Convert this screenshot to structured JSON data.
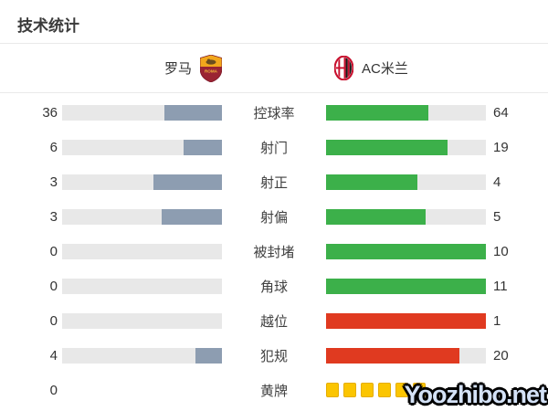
{
  "page": {
    "title": "技术统计",
    "watermark": "Yoozhibo.net"
  },
  "header": {
    "home_team": "罗马",
    "away_team": "AC米兰",
    "home_badge": "roma-crest-icon",
    "away_badge": "ac-milan-crest-icon"
  },
  "colors": {
    "home_fill": "#8d9db1",
    "away_green": "#3cb04a",
    "away_red": "#e03a20",
    "track": "#e8e8e8",
    "yellow_card": "#fbc501",
    "yellow_card_border": "#e5ad00"
  },
  "chart_data": {
    "type": "bar",
    "title": "技术统计",
    "home_team": "罗马",
    "away_team": "AC米兰",
    "normalization": "fill width = value / (home + away)",
    "legend_position": "none",
    "grid": false,
    "rows": [
      {
        "label": "控球率",
        "home": 36,
        "away": 64,
        "away_color": "green"
      },
      {
        "label": "射门",
        "home": 6,
        "away": 19,
        "away_color": "green"
      },
      {
        "label": "射正",
        "home": 3,
        "away": 4,
        "away_color": "green"
      },
      {
        "label": "射偏",
        "home": 3,
        "away": 5,
        "away_color": "green"
      },
      {
        "label": "被封堵",
        "home": 0,
        "away": 10,
        "away_color": "green"
      },
      {
        "label": "角球",
        "home": 0,
        "away": 11,
        "away_color": "green"
      },
      {
        "label": "越位",
        "home": 0,
        "away": 1,
        "away_color": "red"
      },
      {
        "label": "犯规",
        "home": 4,
        "away": 20,
        "away_color": "red"
      },
      {
        "label": "黄牌",
        "home": 0,
        "away_display": "card-icons",
        "away_cards_visible": 6
      }
    ]
  }
}
